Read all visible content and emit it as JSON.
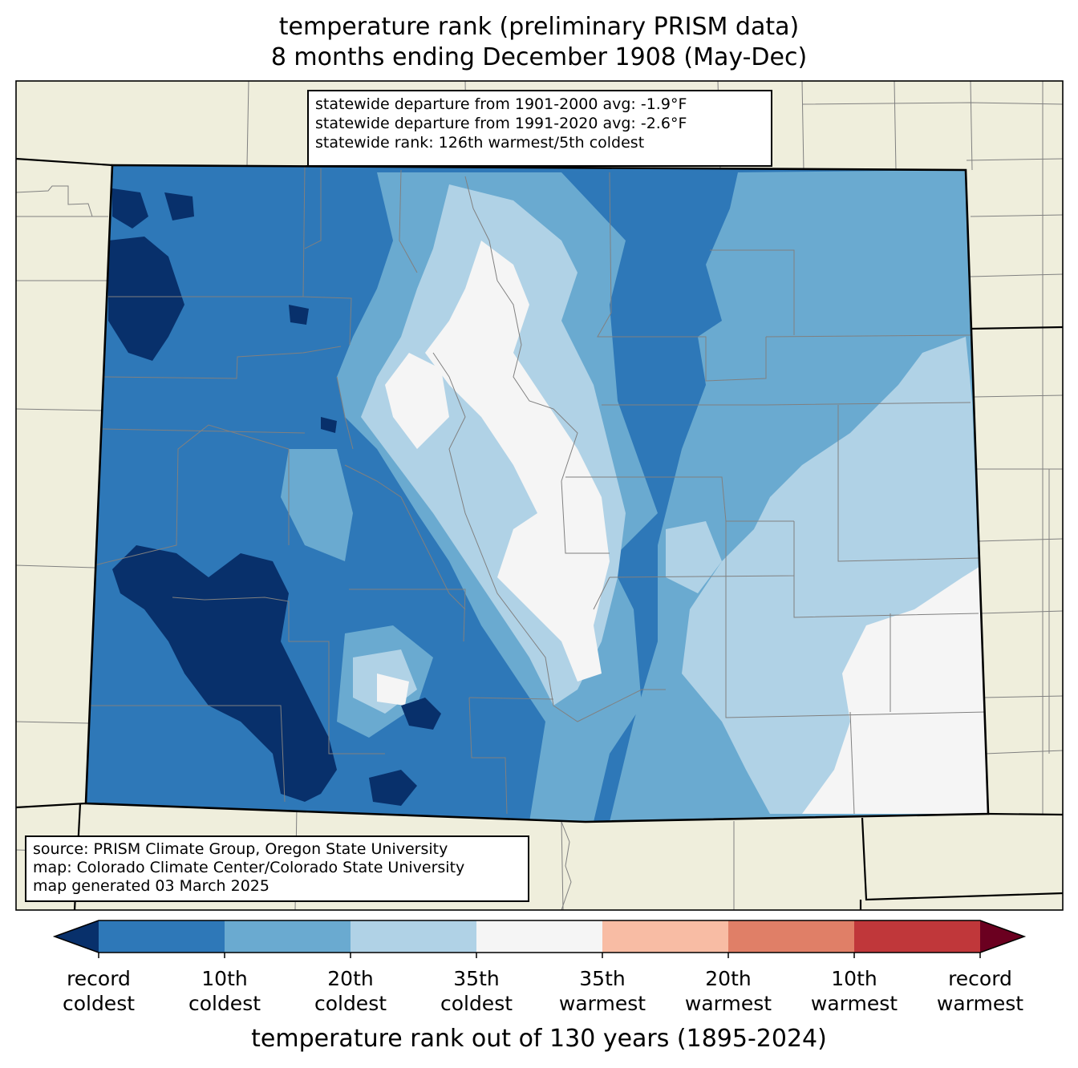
{
  "title": {
    "line1": "temperature rank (preliminary PRISM data)",
    "line2": "8 months ending December 1908 (May-Dec)"
  },
  "stats": {
    "line1": "statewide departure from 1901-2000 avg: -1.9°F",
    "line2": "statewide departure from 1991-2020 avg: -2.6°F",
    "line3": "statewide rank: 126th warmest/5th coldest"
  },
  "source": {
    "line1": "source: PRISM Climate Group, Oregon State University",
    "line2": "map: Colorado Climate Center/Colorado State University",
    "line3": "map generated 03 March 2025"
  },
  "colorbar": {
    "label": "temperature rank out of 130 years (1895-2024)",
    "colors": [
      "#08306b",
      "#2e78b8",
      "#6aaad0",
      "#b0d2e6",
      "#f5f5f5",
      "#f8bca4",
      "#e07f67",
      "#c0373a",
      "#6b0020"
    ],
    "ticks": [
      {
        "line1": "record",
        "line2": "coldest"
      },
      {
        "line1": "10th",
        "line2": "coldest"
      },
      {
        "line1": "20th",
        "line2": "coldest"
      },
      {
        "line1": "35th",
        "line2": "coldest"
      },
      {
        "line1": "35th",
        "line2": "warmest"
      },
      {
        "line1": "20th",
        "line2": "warmest"
      },
      {
        "line1": "10th",
        "line2": "warmest"
      },
      {
        "line1": "record",
        "line2": "warmest"
      }
    ]
  },
  "map_colors": {
    "land_background": "#efeedc",
    "record_coldest": "#08306b",
    "coldest_10th": "#2e78b8",
    "coldest_20th": "#6aaad0",
    "coldest_35th": "#b0d2e6",
    "near_normal": "#f5f5f5",
    "county_lines": "#808080",
    "state_lines": "#000000"
  }
}
